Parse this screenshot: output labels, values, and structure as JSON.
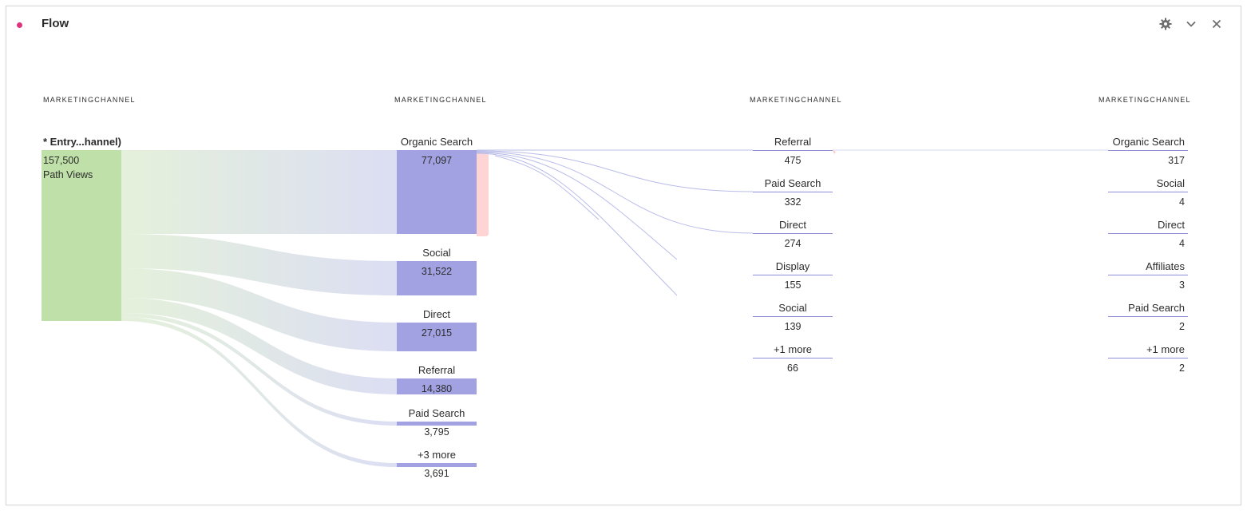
{
  "panel": {
    "title": "Flow",
    "dot_color": "#e0337d",
    "icons": [
      "gear-icon",
      "chevron-down-icon",
      "close-icon"
    ]
  },
  "columns": {
    "col1": {
      "header": "MARKETINGCHANNEL"
    },
    "col2": {
      "header": "MARKETINGCHANNEL"
    },
    "col3": {
      "header": "MARKETINGCHANNEL"
    },
    "col4": {
      "header": "MARKETINGCHANNEL"
    }
  },
  "entry": {
    "label": "* Entry...hannel)",
    "value": "157,500",
    "unit": "Path Views",
    "color": "#bfe0a8"
  },
  "step1": [
    {
      "label": "Organic Search",
      "value": "77,097"
    },
    {
      "label": "Social",
      "value": "31,522"
    },
    {
      "label": "Direct",
      "value": "27,015"
    },
    {
      "label": "Referral",
      "value": "14,380"
    },
    {
      "label": "Paid Search",
      "value": "3,795"
    },
    {
      "label": "+3 more",
      "value": "3,691"
    }
  ],
  "step2": [
    {
      "label": "Referral",
      "value": "475"
    },
    {
      "label": "Paid Search",
      "value": "332"
    },
    {
      "label": "Direct",
      "value": "274"
    },
    {
      "label": "Display",
      "value": "155"
    },
    {
      "label": "Social",
      "value": "139"
    },
    {
      "label": "+1 more",
      "value": "66"
    }
  ],
  "step3": [
    {
      "label": "Organic Search",
      "value": "317"
    },
    {
      "label": "Social",
      "value": "4"
    },
    {
      "label": "Direct",
      "value": "4"
    },
    {
      "label": "Affiliates",
      "value": "3"
    },
    {
      "label": "Paid Search",
      "value": "2"
    },
    {
      "label": "+1 more",
      "value": "2"
    }
  ],
  "colors": {
    "node": "#a2a2e3",
    "underline": "#8f8fd6",
    "exit": "#ffcccc"
  }
}
